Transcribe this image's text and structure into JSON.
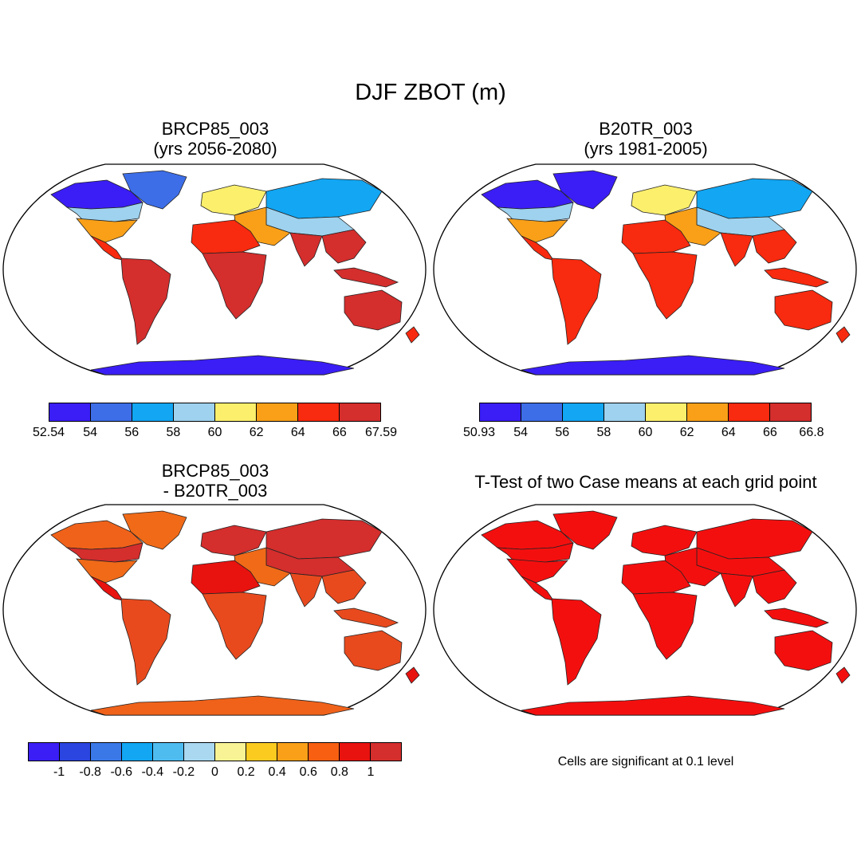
{
  "title": "DJF ZBOT (m)",
  "panels": [
    {
      "id": "case1",
      "title_line1": "BRCP85_003",
      "title_line2": "(yrs 2056-2080)",
      "colorbar": {
        "colors": [
          "#3a1ef5",
          "#3d6ee8",
          "#12a6f3",
          "#9ed2ee",
          "#fbef6c",
          "#f9a018",
          "#f82a0f",
          "#d42e2d"
        ],
        "labels": [
          "52.54",
          "54",
          "56",
          "58",
          "60",
          "62",
          "64",
          "66",
          "67.59"
        ]
      },
      "palette": {
        "tropics": "#d42e2d",
        "subtropics": "#f82a0f",
        "warm": "#f9a018",
        "mid": "#fbef6c",
        "cool": "#9ed2ee",
        "cold": "#12a6f3",
        "polar": "#3d6ee8",
        "deep": "#3a1ef5"
      }
    },
    {
      "id": "case2",
      "title_line1": "B20TR_003",
      "title_line2": "(yrs 1981-2005)",
      "colorbar": {
        "colors": [
          "#3a1ef5",
          "#3d6ee8",
          "#12a6f3",
          "#9ed2ee",
          "#fbef6c",
          "#f9a018",
          "#f82a0f",
          "#d42e2d"
        ],
        "labels": [
          "50.93",
          "54",
          "56",
          "58",
          "60",
          "62",
          "64",
          "66",
          "66.8"
        ]
      },
      "palette": {
        "tropics": "#f82a0f",
        "subtropics": "#f82a0f",
        "warm": "#f9a018",
        "mid": "#fbef6c",
        "cool": "#9ed2ee",
        "cold": "#12a6f3",
        "polar": "#3a1ef5",
        "deep": "#3a1ef5"
      }
    },
    {
      "id": "difference",
      "title_line1": "BRCP85_003",
      "title_line2": "- B20TR_003",
      "colorbar": {
        "colors": [
          "#3a1ef5",
          "#2b45e0",
          "#3a78e8",
          "#12a6f3",
          "#4fbcf0",
          "#a9d8f0",
          "#f8f394",
          "#fbcb20",
          "#f9a018",
          "#f85f10",
          "#e8120f",
          "#d42e2d"
        ],
        "labels": [
          "-1",
          "-0.8",
          "-0.6",
          "-0.4",
          "-0.2",
          "0",
          "0.2",
          "0.4",
          "0.6",
          "0.8",
          "1"
        ]
      },
      "palette": {
        "tropics": "#e84a1e",
        "subtropics": "#e8120f",
        "warm": "#f06a18",
        "mid": "#d42e2d",
        "cool": "#d42e2d",
        "cold": "#d42e2d",
        "polar": "#f06a18",
        "deep": "#f0621a"
      }
    },
    {
      "id": "ttest",
      "title_line1": "T-Test of two Case means at each grid point",
      "note": "Cells are significant at 0.1 level",
      "palette": {
        "tropics": "#f40f0f",
        "subtropics": "#f40f0f",
        "warm": "#f40f0f",
        "mid": "#f40f0f",
        "cool": "#f40f0f",
        "cold": "#f40f0f",
        "polar": "#f40f0f",
        "deep": "#f40f0f"
      }
    }
  ]
}
